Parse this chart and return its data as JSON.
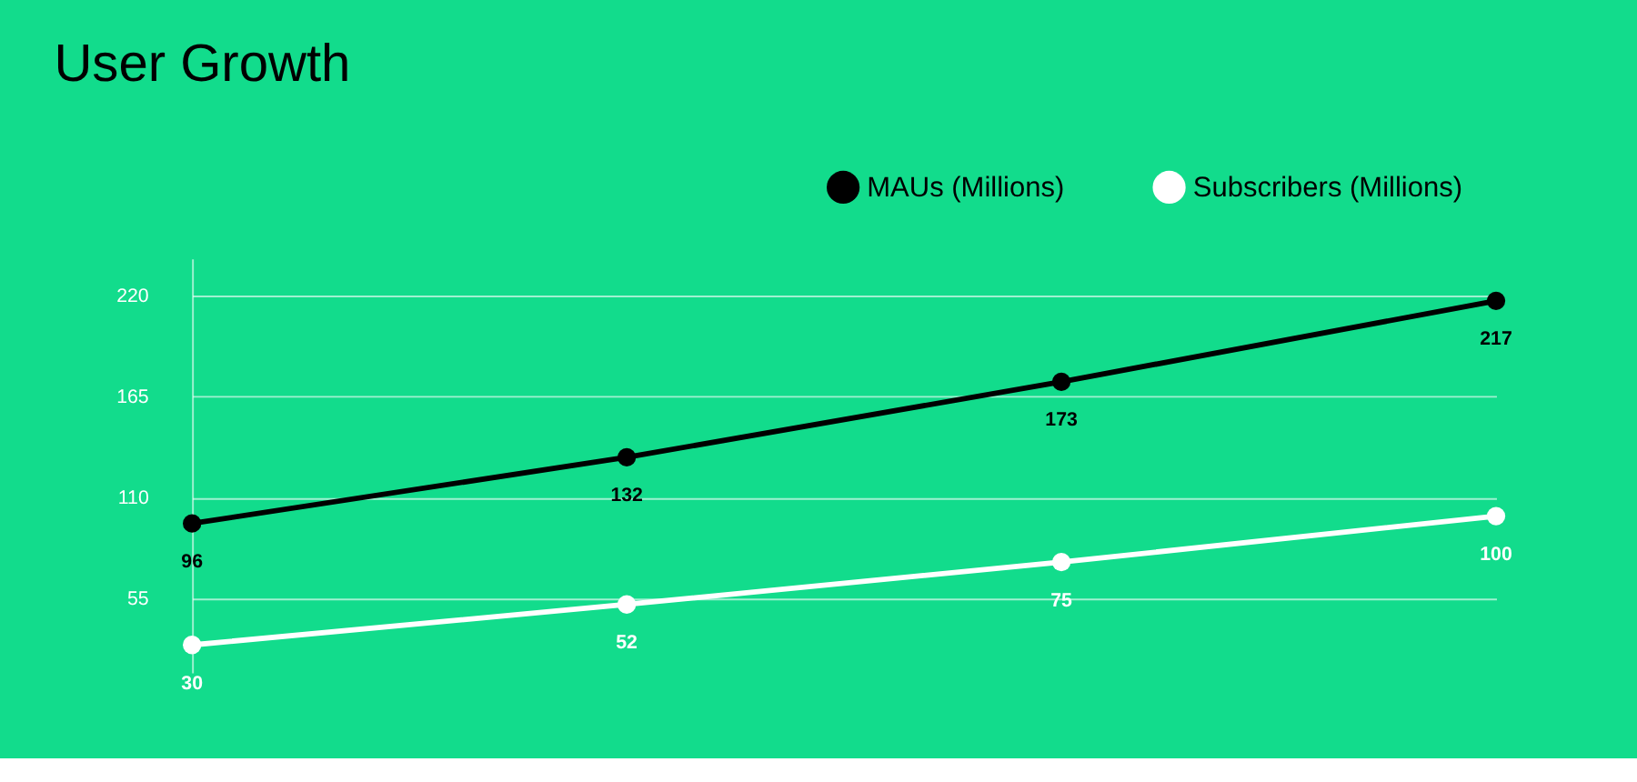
{
  "chart_data": {
    "type": "line",
    "title": "User Growth",
    "categories": [
      null,
      null,
      null,
      null
    ],
    "series": [
      {
        "name": "MAUs (Millions)",
        "color": "#000000",
        "values": [
          96,
          132,
          173,
          217
        ]
      },
      {
        "name": "Subscribers (Millions)",
        "color": "#ffffff",
        "values": [
          30,
          52,
          75,
          100
        ]
      }
    ],
    "ylim": [
      15,
      240
    ],
    "yticks": [
      55,
      110,
      165,
      220
    ],
    "grid": "y",
    "legend": "top right",
    "tick_labels": "y",
    "marker": "circle",
    "line_style": "solid",
    "data_labels": true
  }
}
